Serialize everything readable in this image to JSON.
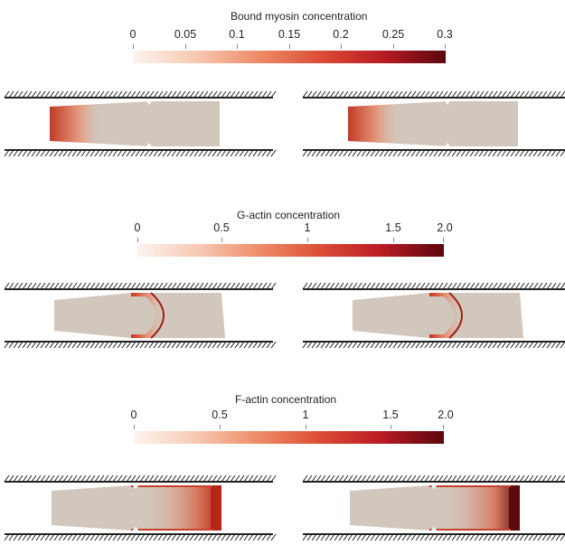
{
  "colorbars": [
    {
      "id": "myosin",
      "title": "Bound myosin concentration",
      "ticks": [
        "0",
        "0.05",
        "0.1",
        "0.15",
        "0.2",
        "0.25",
        "0.3"
      ],
      "gradient": [
        "#fdf3ef",
        "#f7c9b3",
        "#ee8c68",
        "#dc4c36",
        "#b81b22",
        "#5a0710"
      ]
    },
    {
      "id": "gactin",
      "title": "G-actin concentration",
      "ticks": [
        "0",
        "0.5",
        "1",
        "1.5",
        "2.0"
      ],
      "gradient": [
        "#fdf3ef",
        "#f7c9b3",
        "#ee8c68",
        "#dc4c36",
        "#b81b22",
        "#5a0710"
      ]
    },
    {
      "id": "factin",
      "title": "F-actin concentration",
      "ticks": [
        "0",
        "0.5",
        "1",
        "1.5",
        "2.0"
      ],
      "gradient": [
        "#fdf3ef",
        "#f7c9b3",
        "#ee8c68",
        "#dc4c36",
        "#b81b22",
        "#5a0710"
      ]
    }
  ],
  "colors": {
    "cell_body": "#d2c7bc",
    "wall": "#222222",
    "myosin_front": "#c23a26",
    "actin_cup": "#c6321f",
    "factin_rear": "#b8261a",
    "factin_rear_dark": "#5c0a0c"
  }
}
